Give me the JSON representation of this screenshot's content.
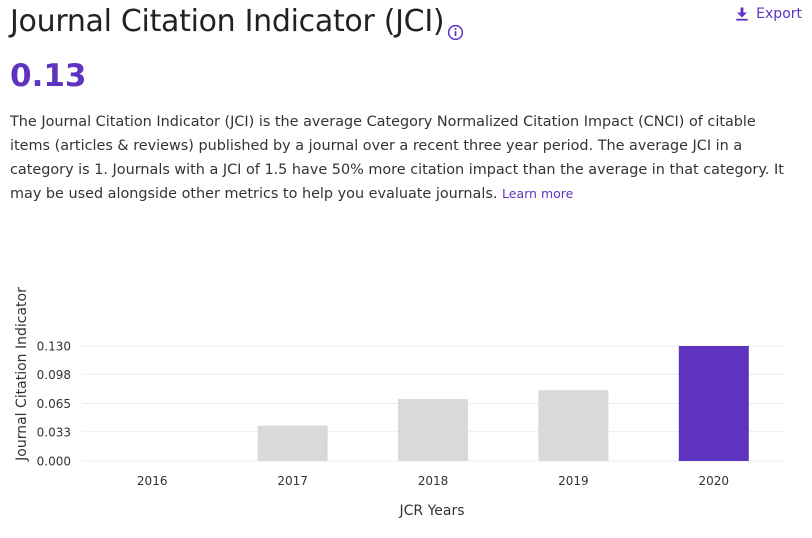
{
  "header": {
    "title": "Journal Citation Indicator (JCI)",
    "info_icon": "info-circle-icon",
    "export_label": "Export",
    "export_icon": "download-icon"
  },
  "metric": {
    "value": "0.13"
  },
  "description": {
    "text": "The Journal Citation Indicator (JCI) is the average Category Normalized Citation Impact (CNCI) of citable items (articles & reviews) published by a journal over a recent three year period. The average JCI in a category is 1. Journals with a JCI of 1.5 have 50% more citation impact than the average in that category. It may be used alongside other metrics to help you evaluate journals.",
    "learn_more": "Learn more"
  },
  "colors": {
    "accent": "#5e33bf",
    "bar_default": "#d9d9d9",
    "bar_highlight": "#5e33bf"
  },
  "chart_data": {
    "type": "bar",
    "title": "",
    "xlabel": "JCR Years",
    "ylabel": "Journal Citation Indicator",
    "categories": [
      "2016",
      "2017",
      "2018",
      "2019",
      "2020"
    ],
    "values": [
      0,
      0.04,
      0.07,
      0.08,
      0.13
    ],
    "highlight_index": 4,
    "ylim": [
      0,
      0.13
    ],
    "yticks": [
      "0.000",
      "0.033",
      "0.065",
      "0.098",
      "0.130"
    ],
    "grid": true
  }
}
